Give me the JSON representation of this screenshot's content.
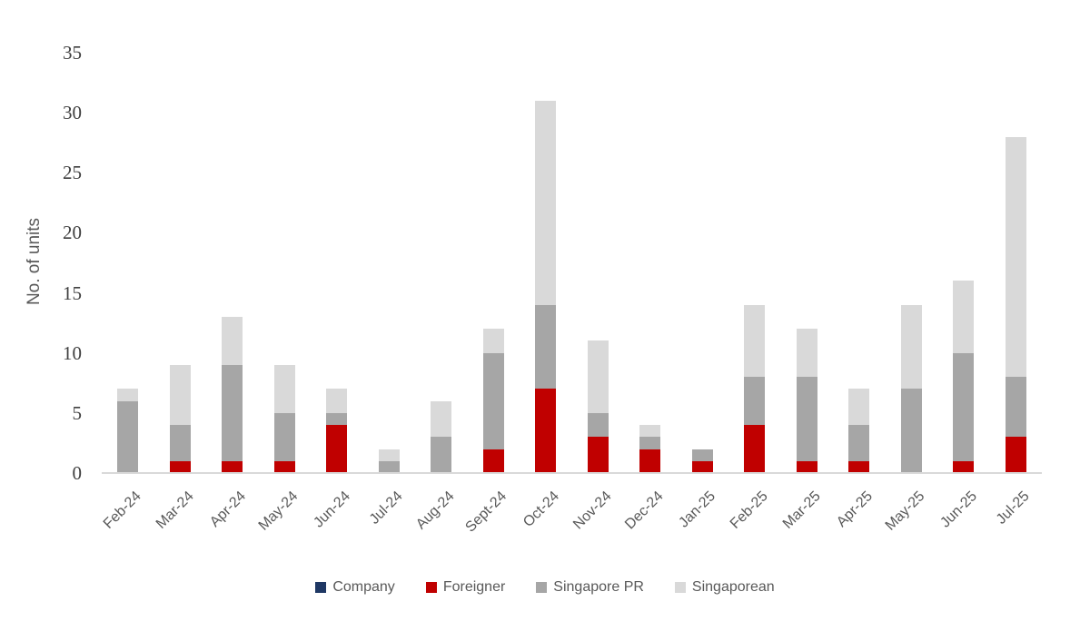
{
  "chart_data": {
    "type": "bar",
    "stacked": true,
    "title": "",
    "xlabel": "",
    "ylabel": "No. of units",
    "ylim": [
      0,
      35
    ],
    "ytick_step": 5,
    "grid": false,
    "legend_position": "bottom",
    "categories": [
      "Feb-24",
      "Mar-24",
      "Apr-24",
      "May-24",
      "Jun-24",
      "Jul-24",
      "Aug-24",
      "Sept-24",
      "Oct-24",
      "Nov-24",
      "Dec-24",
      "Jan-25",
      "Feb-25",
      "Mar-25",
      "Apr-25",
      "May-25",
      "Jun-25",
      "Jul-25"
    ],
    "series": [
      {
        "name": "Company",
        "color": "#1f3864",
        "values": [
          0,
          0,
          0,
          0,
          0,
          0,
          0,
          0,
          0,
          0,
          0,
          0,
          0,
          0,
          0,
          0,
          0,
          0
        ]
      },
      {
        "name": "Foreigner",
        "color": "#c00000",
        "values": [
          0,
          1,
          1,
          1,
          4,
          0,
          0,
          2,
          7,
          3,
          2,
          1,
          4,
          1,
          1,
          0,
          1,
          3
        ]
      },
      {
        "name": "Singapore PR",
        "color": "#a6a6a6",
        "values": [
          6,
          3,
          8,
          4,
          1,
          1,
          3,
          8,
          7,
          2,
          1,
          1,
          4,
          7,
          3,
          7,
          9,
          5
        ]
      },
      {
        "name": "Singaporean",
        "color": "#d9d9d9",
        "values": [
          1,
          5,
          4,
          4,
          2,
          1,
          3,
          2,
          17,
          6,
          1,
          0,
          6,
          4,
          3,
          7,
          6,
          20
        ]
      }
    ],
    "colors": {
      "axis_line": "#d9d9d9",
      "axis_text": "#595959",
      "ytick_text": "#404040",
      "background": "#ffffff"
    }
  }
}
